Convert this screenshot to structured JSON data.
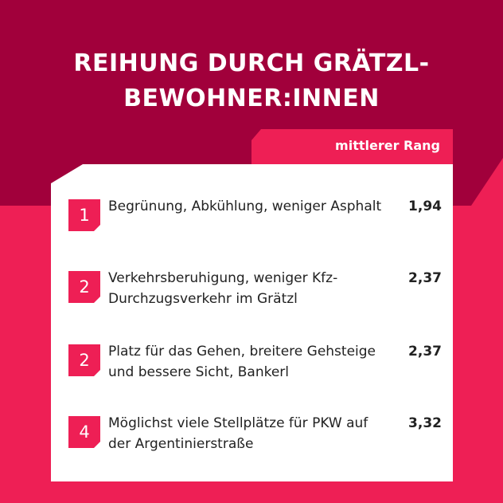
{
  "title": "REIHUNG DURCH GRÄTZL-BEWOHNER:INNEN",
  "column_header": "mittlerer Rang",
  "items": [
    {
      "rank": "1",
      "text": "Begrünung, Abkühlung, weniger Asphalt",
      "value": "1,94"
    },
    {
      "rank": "2",
      "text": "Verkehrsberuhigung, weniger Kfz-Durchzugsverkehr im Grätzl",
      "value": "2,37"
    },
    {
      "rank": "2",
      "text": "Platz für das Gehen, breitere Gehsteige und bessere Sicht, Bankerl",
      "value": "2,37"
    },
    {
      "rank": "4",
      "text": "Möglichst viele Stellplätze für PKW auf der Argentinierstraße",
      "value": "3,32"
    }
  ],
  "colors": {
    "dark_red": "#a1003b",
    "pink": "#ee1f55",
    "white": "#ffffff"
  }
}
